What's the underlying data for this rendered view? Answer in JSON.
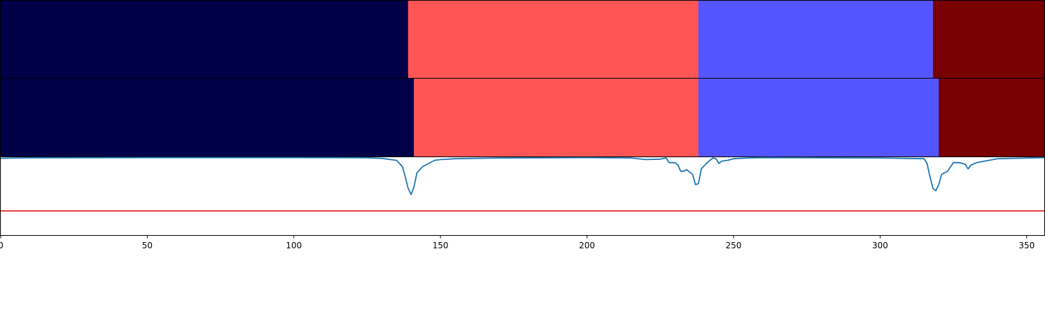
{
  "chart_data": [
    {
      "type": "segments",
      "xlim": [
        0,
        356
      ],
      "segments": [
        {
          "start": 0,
          "end": 139,
          "color": "#000048"
        },
        {
          "start": 139,
          "end": 238,
          "color": "#ff5555"
        },
        {
          "start": 238,
          "end": 318,
          "color": "#5555ff"
        },
        {
          "start": 318,
          "end": 356,
          "color": "#780000"
        }
      ]
    },
    {
      "type": "segments",
      "xlim": [
        0,
        356
      ],
      "segments": [
        {
          "start": 0,
          "end": 141,
          "color": "#000048"
        },
        {
          "start": 141,
          "end": 238,
          "color": "#ff5555"
        },
        {
          "start": 238,
          "end": 320,
          "color": "#5555ff"
        },
        {
          "start": 320,
          "end": 356,
          "color": "#780000"
        }
      ]
    },
    {
      "type": "line",
      "xlim": [
        0,
        356
      ],
      "ylim": [
        0,
        1
      ],
      "xticks": [
        0,
        50,
        100,
        150,
        200,
        250,
        300,
        350
      ],
      "threshold": {
        "value": 0.31,
        "color": "#dd0000"
      },
      "series": [
        {
          "color": "#1f77b4",
          "points": [
            [
              0,
              0.985
            ],
            [
              5,
              0.99
            ],
            [
              10,
              0.992
            ],
            [
              50,
              0.995
            ],
            [
              100,
              0.995
            ],
            [
              125,
              0.993
            ],
            [
              130,
              0.985
            ],
            [
              135,
              0.96
            ],
            [
              137,
              0.88
            ],
            [
              138,
              0.75
            ],
            [
              139,
              0.6
            ],
            [
              140,
              0.52
            ],
            [
              141,
              0.62
            ],
            [
              142,
              0.8
            ],
            [
              144,
              0.88
            ],
            [
              146,
              0.92
            ],
            [
              148,
              0.96
            ],
            [
              150,
              0.97
            ],
            [
              155,
              0.98
            ],
            [
              170,
              0.99
            ],
            [
              200,
              0.995
            ],
            [
              215,
              0.99
            ],
            [
              220,
              0.97
            ],
            [
              225,
              0.975
            ],
            [
              227,
              0.99
            ],
            [
              228,
              0.93
            ],
            [
              230,
              0.93
            ],
            [
              231,
              0.9
            ],
            [
              232,
              0.82
            ],
            [
              233,
              0.82
            ],
            [
              234,
              0.84
            ],
            [
              236,
              0.78
            ],
            [
              237,
              0.65
            ],
            [
              238,
              0.66
            ],
            [
              239,
              0.85
            ],
            [
              241,
              0.93
            ],
            [
              243,
              0.99
            ],
            [
              244,
              0.98
            ],
            [
              245,
              0.92
            ],
            [
              246,
              0.95
            ],
            [
              248,
              0.96
            ],
            [
              250,
              0.98
            ],
            [
              255,
              0.99
            ],
            [
              260,
              0.995
            ],
            [
              300,
              0.99
            ],
            [
              315,
              0.98
            ],
            [
              316,
              0.92
            ],
            [
              317,
              0.75
            ],
            [
              318,
              0.6
            ],
            [
              319,
              0.57
            ],
            [
              320,
              0.65
            ],
            [
              321,
              0.78
            ],
            [
              323,
              0.82
            ],
            [
              325,
              0.93
            ],
            [
              327,
              0.93
            ],
            [
              329,
              0.91
            ],
            [
              330,
              0.85
            ],
            [
              331,
              0.9
            ],
            [
              333,
              0.93
            ],
            [
              340,
              0.98
            ],
            [
              356,
              0.995
            ]
          ]
        }
      ]
    }
  ]
}
